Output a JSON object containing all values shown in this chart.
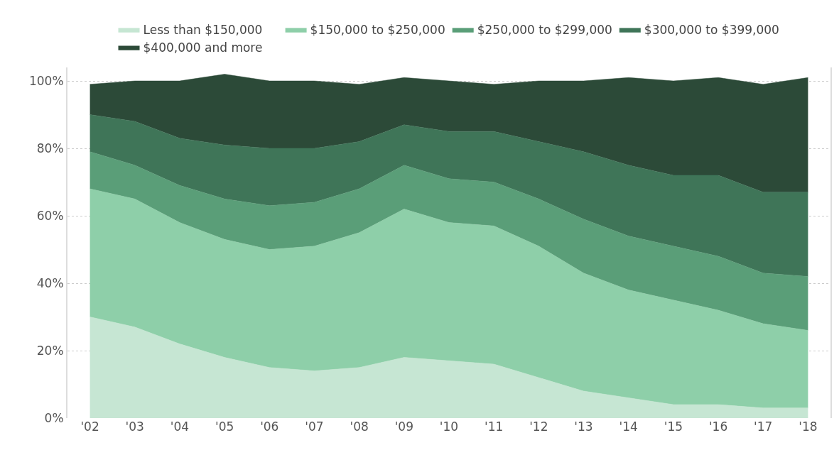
{
  "chart_data": {
    "type": "area",
    "stacked": true,
    "categories": [
      "'02",
      "'03",
      "'04",
      "'05",
      "'06",
      "'07",
      "'08",
      "'09",
      "'10",
      "'11",
      "'12",
      "'13",
      "'14",
      "'15",
      "'16",
      "'17",
      "'18"
    ],
    "series": [
      {
        "name": "Less than $150,000",
        "color": "#c6e6d3",
        "values": [
          30,
          27,
          22,
          18,
          15,
          14,
          15,
          18,
          17,
          16,
          12,
          8,
          6,
          4,
          4,
          3,
          3
        ]
      },
      {
        "name": "$150,000 to $250,000",
        "color": "#8ecfa9",
        "values": [
          38,
          38,
          36,
          35,
          35,
          37,
          40,
          44,
          41,
          41,
          39,
          35,
          32,
          31,
          28,
          25,
          23
        ]
      },
      {
        "name": "$250,000 to $299,000",
        "color": "#5a9e78",
        "values": [
          11,
          10,
          11,
          12,
          13,
          13,
          13,
          13,
          13,
          13,
          14,
          16,
          16,
          16,
          16,
          15,
          16
        ]
      },
      {
        "name": "$300,000 to $399,000",
        "color": "#3f7558",
        "values": [
          11,
          13,
          14,
          16,
          17,
          16,
          14,
          12,
          14,
          15,
          17,
          20,
          21,
          21,
          24,
          24,
          25
        ]
      },
      {
        "name": "$400,000 and more",
        "color": "#2c4a38",
        "values": [
          9,
          12,
          17,
          21,
          20,
          20,
          17,
          14,
          15,
          14,
          18,
          21,
          26,
          28,
          29,
          32,
          34
        ]
      }
    ],
    "ylim": [
      0,
      104
    ],
    "yticks": [
      {
        "value": 0,
        "label": "0%"
      },
      {
        "value": 20,
        "label": "20%"
      },
      {
        "value": 40,
        "label": "40%"
      },
      {
        "value": 60,
        "label": "60%"
      },
      {
        "value": 80,
        "label": "80%"
      },
      {
        "value": 100,
        "label": "100%"
      }
    ],
    "grid": "y",
    "legend": "top"
  }
}
